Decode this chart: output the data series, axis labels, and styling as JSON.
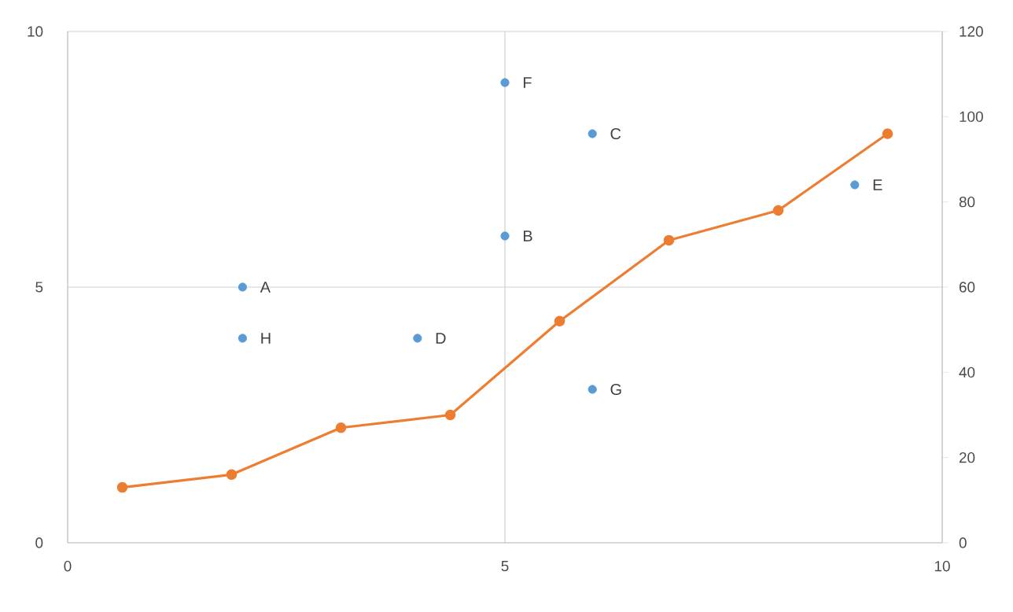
{
  "chart_data": {
    "type": "scatter",
    "xlim": [
      0,
      10
    ],
    "xticks": [
      0,
      5,
      10
    ],
    "ylim": [
      0,
      10
    ],
    "yticks": [
      0,
      5,
      10
    ],
    "y2lim": [
      0,
      120
    ],
    "y2ticks": [
      0,
      20,
      40,
      60,
      80,
      100,
      120
    ],
    "grid": true,
    "marker": "circle",
    "series": [
      {
        "color": "#5b9bd5",
        "x": [
          2,
          6,
          5,
          4,
          9,
          5,
          6,
          2
        ],
        "values": [
          5,
          8,
          6,
          4,
          7,
          9,
          3,
          4
        ]
      },
      {
        "type": "line",
        "axis": "y2",
        "color": "#ed7d31",
        "x": [
          0.625,
          1.875,
          3.125,
          4.375,
          5.625,
          6.875,
          8.125,
          9.375
        ],
        "values": [
          13,
          16,
          27,
          30,
          52,
          71,
          78,
          96
        ]
      }
    ],
    "annotations": [
      {
        "text": "A",
        "x": 2,
        "y": 5
      },
      {
        "text": "C",
        "x": 6,
        "y": 8
      },
      {
        "text": "B",
        "x": 5,
        "y": 6
      },
      {
        "text": "D",
        "x": 4,
        "y": 4
      },
      {
        "text": "E",
        "x": 9,
        "y": 7
      },
      {
        "text": "F",
        "x": 5,
        "y": 9
      },
      {
        "text": "G",
        "x": 6,
        "y": 3
      },
      {
        "text": "H",
        "x": 2,
        "y": 4
      }
    ]
  }
}
